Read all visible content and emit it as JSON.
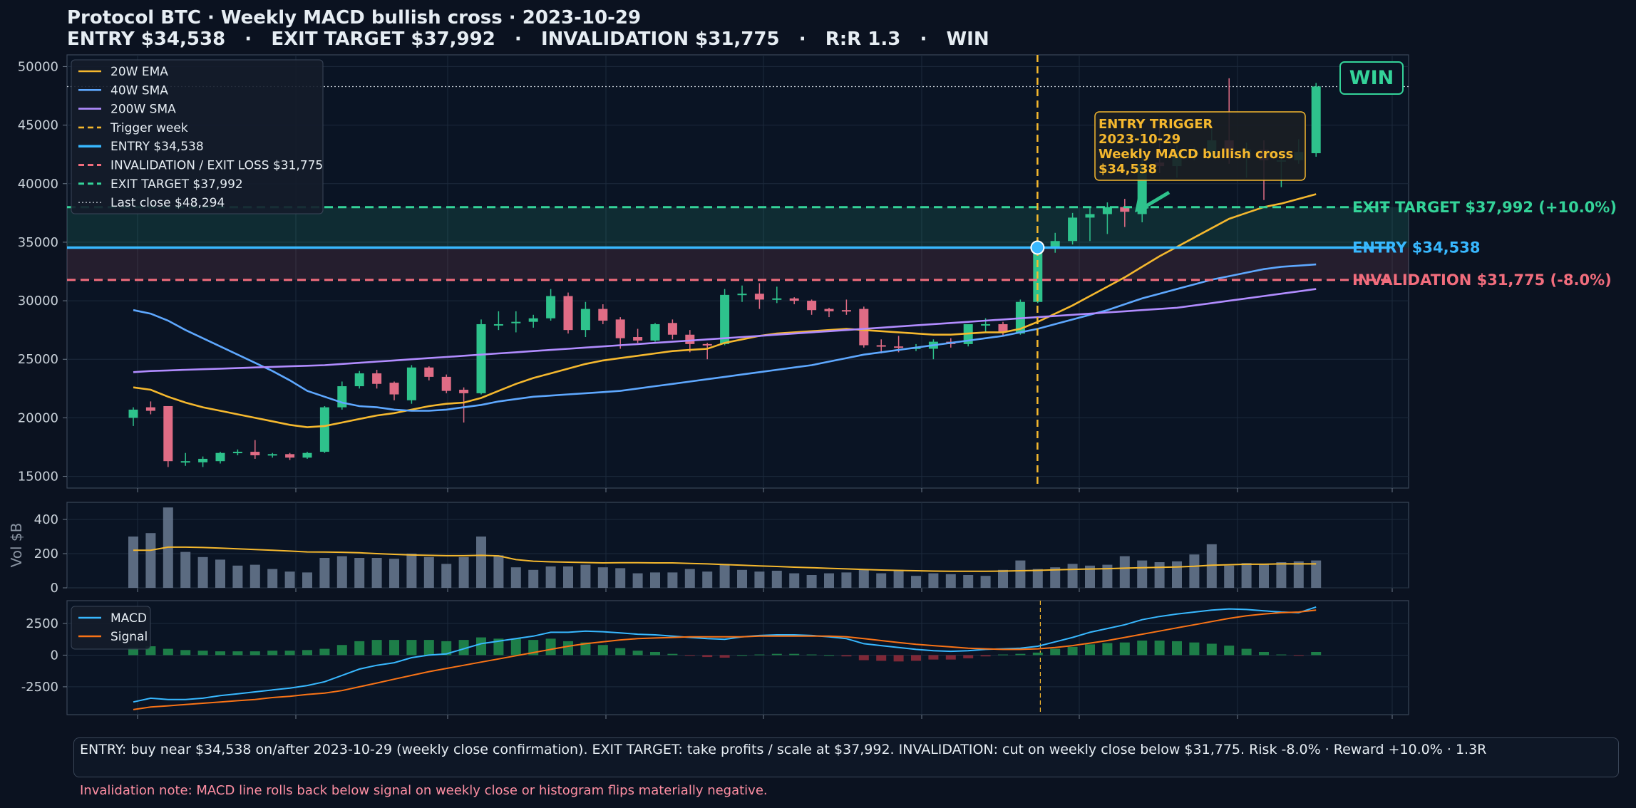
{
  "header": {
    "title": "Protocol BTC · Weekly MACD bullish cross · 2023-10-29",
    "subtitle": "ENTRY $34,538   ·   EXIT TARGET $37,992   ·   INVALIDATION $31,775   ·   R:R 1.3   ·   WIN"
  },
  "footer": {
    "summary": "ENTRY: buy near $34,538 on/after 2023-10-29 (weekly close confirmation).   EXIT TARGET: take profits / scale at $37,992.   INVALIDATION: cut on weekly close below $31,775.   Risk -8.0% · Reward +10.0% · 1.3R",
    "note": "Invalidation note: MACD line rolls back below signal on weekly close or histogram flips materially negative."
  },
  "colors": {
    "background": "#0b1220",
    "panel": "#0a1424",
    "up": "#2ec28c",
    "down": "#e06c85",
    "ema20": "#f5b82e",
    "sma40": "#5ea8ff",
    "sma200": "#b18cff",
    "entry": "#38b8ff",
    "target": "#34d399",
    "invalidation": "#f26d7d",
    "trigger": "#f5b82e",
    "macd": "#38b8ff",
    "signal": "#f97316"
  },
  "chart_data": [
    {
      "type": "candlestick",
      "panel": "price",
      "ylim": [
        14000,
        51000
      ],
      "yticks": [
        15000,
        20000,
        25000,
        30000,
        35000,
        40000,
        45000,
        50000
      ],
      "grid": true,
      "legend_position": "top-left",
      "legend": [
        "20W EMA",
        "40W SMA",
        "200W SMA",
        "Trigger week",
        "ENTRY $34,538",
        "INVALIDATION / EXIT LOSS $31,775",
        "EXIT TARGET $37,992",
        "Last close $48,294"
      ],
      "candles": [
        [
          20000,
          20700,
          19300,
          20900
        ],
        [
          20900,
          20600,
          20300,
          21400
        ],
        [
          21000,
          16300,
          15800,
          21000
        ],
        [
          16200,
          16300,
          15900,
          17000
        ],
        [
          16200,
          16500,
          15800,
          16700
        ],
        [
          16300,
          17000,
          16100,
          17100
        ],
        [
          17000,
          17100,
          16800,
          17300
        ],
        [
          17100,
          16800,
          16500,
          18100
        ],
        [
          16800,
          16900,
          16600,
          17000
        ],
        [
          16900,
          16600,
          16400,
          17000
        ],
        [
          16600,
          17000,
          16500,
          17100
        ],
        [
          17100,
          20900,
          17000,
          21000
        ],
        [
          20900,
          22700,
          20700,
          23100
        ],
        [
          22700,
          23800,
          22500,
          24000
        ],
        [
          23800,
          22900,
          22500,
          24100
        ],
        [
          23000,
          22000,
          21500,
          23100
        ],
        [
          21500,
          24300,
          21200,
          24500
        ],
        [
          24300,
          23500,
          23200,
          24400
        ],
        [
          23500,
          22300,
          22100,
          23700
        ],
        [
          22400,
          22100,
          19600,
          22600
        ],
        [
          22100,
          28000,
          22000,
          28400
        ],
        [
          28000,
          28000,
          27500,
          29100
        ],
        [
          28100,
          28200,
          27300,
          29100
        ],
        [
          28200,
          28500,
          27700,
          28800
        ],
        [
          28500,
          30400,
          28300,
          31000
        ],
        [
          30400,
          27500,
          27200,
          30700
        ],
        [
          27500,
          29300,
          26900,
          29900
        ],
        [
          29300,
          28300,
          28000,
          29700
        ],
        [
          28400,
          26800,
          25900,
          28600
        ],
        [
          26900,
          26600,
          26400,
          27600
        ],
        [
          26600,
          28000,
          26500,
          28100
        ],
        [
          28100,
          27100,
          26700,
          28400
        ],
        [
          27100,
          26300,
          25600,
          27500
        ],
        [
          26300,
          26200,
          25000,
          26400
        ],
        [
          26300,
          30500,
          26200,
          31000
        ],
        [
          30500,
          30600,
          29900,
          31300
        ],
        [
          30600,
          30100,
          29300,
          31500
        ],
        [
          30100,
          30200,
          29800,
          31200
        ],
        [
          30200,
          30000,
          29700,
          30300
        ],
        [
          30000,
          29200,
          28800,
          30100
        ],
        [
          29300,
          29100,
          28600,
          29400
        ],
        [
          29200,
          29100,
          28800,
          30100
        ],
        [
          29300,
          26200,
          26000,
          29500
        ],
        [
          26200,
          26100,
          25500,
          26700
        ],
        [
          26100,
          26000,
          25600,
          27000
        ],
        [
          26000,
          26000,
          25700,
          26300
        ],
        [
          25900,
          26500,
          25000,
          26700
        ],
        [
          26500,
          26300,
          26000,
          26800
        ],
        [
          26300,
          28000,
          26100,
          28000
        ],
        [
          27900,
          28000,
          27300,
          28500
        ],
        [
          28000,
          27300,
          27000,
          28200
        ],
        [
          27200,
          29900,
          27100,
          30100
        ],
        [
          29900,
          34500,
          29800,
          35200
        ],
        [
          34500,
          35100,
          34100,
          35800
        ],
        [
          35100,
          37100,
          34800,
          37500
        ],
        [
          37100,
          37400,
          35100,
          37900
        ],
        [
          37400,
          38000,
          35700,
          38400
        ],
        [
          38000,
          37600,
          36300,
          38700
        ],
        [
          37400,
          41700,
          36700,
          42400
        ],
        [
          41800,
          41500,
          40900,
          44800
        ],
        [
          41500,
          42600,
          40500,
          43300
        ],
        [
          42600,
          42600,
          42000,
          43100
        ],
        [
          42500,
          43700,
          42200,
          44700
        ],
        [
          43700,
          42700,
          41700,
          49000
        ],
        [
          42700,
          42900,
          40500,
          43500
        ],
        [
          42900,
          42000,
          38600,
          43700
        ],
        [
          42000,
          42000,
          39700,
          42600
        ],
        [
          42000,
          42700,
          41700,
          43800
        ],
        [
          42600,
          48300,
          42300,
          48600
        ]
      ],
      "series": [
        {
          "name": "20W EMA",
          "values": [
            22600,
            22400,
            21800,
            21300,
            20900,
            20600,
            20300,
            20000,
            19700,
            19400,
            19200,
            19300,
            19600,
            19900,
            20200,
            20400,
            20700,
            21000,
            21200,
            21300,
            21700,
            22300,
            22900,
            23400,
            23800,
            24200,
            24600,
            24900,
            25100,
            25300,
            25500,
            25700,
            25800,
            25900,
            26400,
            26700,
            27000,
            27200,
            27300,
            27400,
            27500,
            27600,
            27500,
            27400,
            27300,
            27200,
            27100,
            27100,
            27200,
            27300,
            27300,
            27600,
            28200,
            28900,
            29600,
            30400,
            31200,
            32000,
            32900,
            33800,
            34600,
            35400,
            36200,
            37000,
            37500,
            38000,
            38300,
            38700,
            39100
          ]
        },
        {
          "name": "40W SMA",
          "values": [
            29200,
            28900,
            28300,
            27500,
            26800,
            26100,
            25400,
            24700,
            24000,
            23200,
            22300,
            21800,
            21300,
            21000,
            20900,
            20700,
            20600,
            20600,
            20700,
            20900,
            21100,
            21400,
            21600,
            21800,
            21900,
            22000,
            22100,
            22200,
            22300,
            22500,
            22700,
            22900,
            23100,
            23300,
            23500,
            23700,
            23900,
            24100,
            24300,
            24500,
            24800,
            25100,
            25400,
            25600,
            25800,
            26000,
            26200,
            26400,
            26600,
            26800,
            27000,
            27300,
            27600,
            28000,
            28400,
            28800,
            29200,
            29700,
            30200,
            30600,
            31000,
            31400,
            31800,
            32100,
            32400,
            32700,
            32900,
            33000,
            33100
          ]
        },
        {
          "name": "200W SMA",
          "values": [
            23900,
            24000,
            24050,
            24100,
            24150,
            24200,
            24250,
            24300,
            24350,
            24400,
            24450,
            24500,
            24600,
            24700,
            24800,
            24900,
            25000,
            25100,
            25200,
            25300,
            25400,
            25500,
            25600,
            25700,
            25800,
            25900,
            26000,
            26100,
            26200,
            26300,
            26400,
            26500,
            26600,
            26700,
            26800,
            26900,
            27000,
            27100,
            27200,
            27300,
            27400,
            27500,
            27600,
            27700,
            27800,
            27900,
            28000,
            28100,
            28200,
            28300,
            28400,
            28500,
            28600,
            28700,
            28800,
            28900,
            29000,
            29100,
            29200,
            29300,
            29400,
            29600,
            29800,
            30000,
            30200,
            30400,
            30600,
            30800,
            31000
          ]
        }
      ],
      "levels": {
        "entry": {
          "value": 34538,
          "label": "ENTRY  $34,538"
        },
        "target": {
          "value": 37992,
          "label": "EXIT TARGET  $37,992  (+10.0%)"
        },
        "invalidation": {
          "value": 31775,
          "label": "INVALIDATION  $31,775  (-8.0%)"
        },
        "last_close": {
          "value": 48294
        }
      },
      "trigger_index": 52,
      "annotation": {
        "lines": [
          "ENTRY TRIGGER",
          "2023-10-29",
          "Weekly MACD bullish cross",
          "$34,538"
        ]
      },
      "badge": "WIN"
    },
    {
      "type": "bar",
      "panel": "volume",
      "ylabel": "Vol $B",
      "ylim": [
        0,
        500
      ],
      "yticks": [
        0,
        200,
        400
      ],
      "values": [
        300,
        320,
        470,
        210,
        180,
        165,
        130,
        135,
        110,
        95,
        90,
        175,
        185,
        175,
        175,
        170,
        200,
        180,
        140,
        180,
        300,
        190,
        120,
        105,
        125,
        125,
        135,
        120,
        115,
        85,
        90,
        90,
        110,
        95,
        140,
        105,
        95,
        100,
        85,
        75,
        85,
        90,
        105,
        85,
        105,
        70,
        85,
        80,
        75,
        70,
        105,
        160,
        110,
        120,
        140,
        130,
        135,
        185,
        160,
        150,
        155,
        195,
        255,
        130,
        145,
        140,
        150,
        155,
        160
      ],
      "series": [
        {
          "name": "avg",
          "values": [
            220,
            220,
            238,
            238,
            236,
            232,
            228,
            224,
            220,
            215,
            210,
            209,
            208,
            205,
            200,
            196,
            192,
            190,
            188,
            188,
            190,
            187,
            165,
            156,
            152,
            150,
            148,
            146,
            147,
            147,
            146,
            146,
            143,
            140,
            136,
            132,
            128,
            125,
            121,
            118,
            114,
            111,
            107,
            104,
            102,
            100,
            98,
            97,
            97,
            97,
            98,
            100,
            102,
            105,
            108,
            110,
            112,
            115,
            118,
            120,
            122,
            126,
            132,
            135,
            138,
            138,
            140,
            140,
            140
          ]
        }
      ]
    },
    {
      "type": "line",
      "panel": "macd",
      "ylim": [
        -4700,
        4300
      ],
      "yticks": [
        -2500,
        0,
        2500
      ],
      "legend_position": "top-left",
      "legend": [
        "MACD",
        "Signal"
      ],
      "series": [
        {
          "name": "MACD",
          "values": [
            -3700,
            -3400,
            -3500,
            -3500,
            -3400,
            -3200,
            -3050,
            -2900,
            -2750,
            -2600,
            -2400,
            -2100,
            -1600,
            -1100,
            -800,
            -600,
            -200,
            0,
            100,
            500,
            900,
            1100,
            1300,
            1500,
            1800,
            1800,
            1900,
            1850,
            1750,
            1650,
            1600,
            1500,
            1400,
            1300,
            1250,
            1450,
            1550,
            1600,
            1600,
            1550,
            1450,
            1300,
            900,
            750,
            600,
            450,
            350,
            300,
            350,
            450,
            500,
            550,
            700,
            1050,
            1400,
            1800,
            2100,
            2400,
            2800,
            3050,
            3250,
            3400,
            3550,
            3650,
            3600,
            3500,
            3400,
            3350,
            3800
          ]
        },
        {
          "name": "Signal",
          "values": [
            -4300,
            -4100,
            -4000,
            -3900,
            -3800,
            -3700,
            -3600,
            -3500,
            -3350,
            -3250,
            -3100,
            -3000,
            -2800,
            -2500,
            -2200,
            -1900,
            -1600,
            -1300,
            -1050,
            -800,
            -550,
            -300,
            -50,
            200,
            450,
            700,
            900,
            1050,
            1200,
            1300,
            1350,
            1400,
            1450,
            1450,
            1450,
            1450,
            1500,
            1500,
            1500,
            1500,
            1500,
            1450,
            1300,
            1150,
            1000,
            850,
            750,
            650,
            550,
            500,
            450,
            450,
            500,
            600,
            750,
            950,
            1150,
            1400,
            1650,
            1900,
            2150,
            2400,
            2650,
            2900,
            3100,
            3250,
            3350,
            3400,
            3550
          ]
        }
      ],
      "histogram": [
        600,
        700,
        500,
        400,
        350,
        300,
        300,
        300,
        350,
        350,
        400,
        500,
        800,
        1100,
        1200,
        1200,
        1200,
        1200,
        1100,
        1200,
        1400,
        1300,
        1300,
        1200,
        1300,
        1100,
        1000,
        800,
        550,
        350,
        250,
        100,
        -50,
        -150,
        -200,
        0,
        50,
        100,
        100,
        50,
        0,
        -100,
        -400,
        -450,
        -500,
        -450,
        -350,
        -350,
        -250,
        -100,
        50,
        100,
        200,
        500,
        650,
        850,
        950,
        1000,
        1150,
        1150,
        1100,
        1000,
        900,
        750,
        500,
        250,
        50,
        -50,
        250
      ]
    }
  ]
}
